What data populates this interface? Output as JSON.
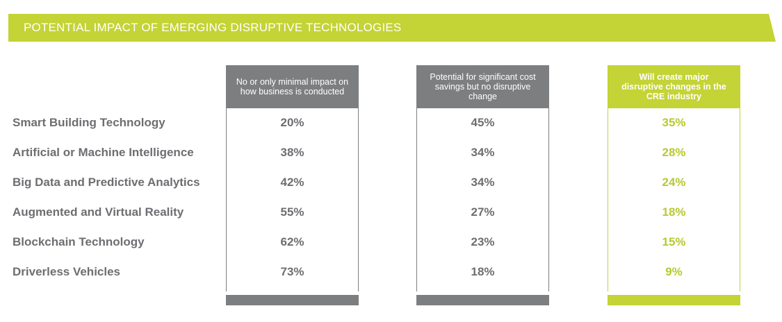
{
  "banner": {
    "title": "POTENTIAL IMPACT OF EMERGING DISRUPTIVE TECHNOLOGIES",
    "color": "#c4d335"
  },
  "colors": {
    "grey": "#7d7e80",
    "green": "#c4d335",
    "text": "#6d6e71"
  },
  "chart_data": {
    "type": "table",
    "title": "POTENTIAL IMPACT OF EMERGING DISRUPTIVE TECHNOLOGIES",
    "columns": [
      "No or only minimal impact on how business is conducted",
      "Potential for significant cost savings but no disruptive change",
      "Will create major disruptive changes in the CRE industry"
    ],
    "rows": [
      "Smart Building Technology",
      "Artificial or Machine Intelligence",
      "Big Data and Predictive Analytics",
      "Augmented and Virtual Reality",
      "Blockchain Technology",
      "Driverless Vehicles"
    ],
    "values": [
      [
        "20%",
        "45%",
        "35%"
      ],
      [
        "38%",
        "34%",
        "28%"
      ],
      [
        "42%",
        "34%",
        "24%"
      ],
      [
        "55%",
        "27%",
        "18%"
      ],
      [
        "62%",
        "23%",
        "15%"
      ],
      [
        "73%",
        "18%",
        "9%"
      ]
    ]
  }
}
